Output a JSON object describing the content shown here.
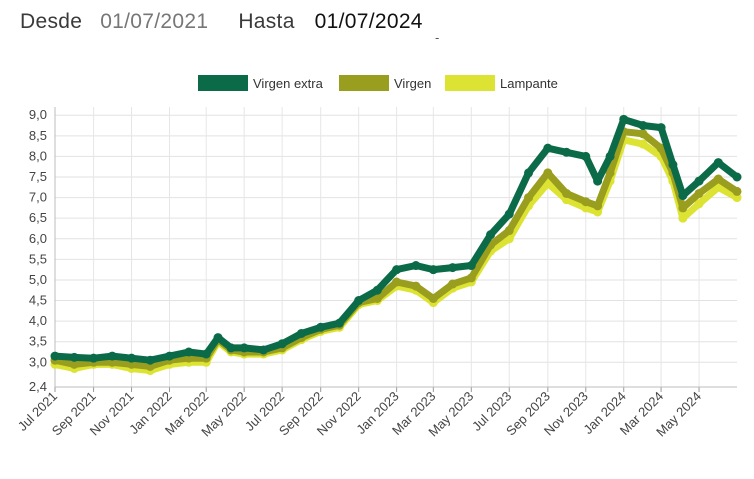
{
  "filter": {
    "from_label": "Desde",
    "from_value": "01/07/2021",
    "to_label": "Hasta",
    "to_value": "01/07/2024",
    "dash": "-"
  },
  "chart_data": {
    "type": "line",
    "title": "",
    "xlabel": "",
    "ylabel": "",
    "legend_position": "top",
    "grid": true,
    "ylim": [
      2.4,
      9.2
    ],
    "y_ticks": [
      2.4,
      3.0,
      3.5,
      4.0,
      4.5,
      5.0,
      5.5,
      6.0,
      6.5,
      7.0,
      7.5,
      8.0,
      8.5,
      9.0
    ],
    "y_tick_labels": [
      "2,4",
      "3,0",
      "3,5",
      "4,0",
      "4,5",
      "5,0",
      "5,5",
      "6,0",
      "6,5",
      "7,0",
      "7,5",
      "8,0",
      "8,5",
      "9,0"
    ],
    "x_tick_labels": [
      "Jul 2021",
      "Sep 2021",
      "Nov 2021",
      "Jan 2022",
      "Mar 2022",
      "May 2022",
      "Jul 2022",
      "Sep 2022",
      "Nov 2022",
      "Jan 2023",
      "Mar 2023",
      "May 2023",
      "Jul 2023",
      "Sep 2023",
      "Nov 2023",
      "Jan 2024",
      "Mar 2024",
      "May 2024"
    ],
    "x_tick_dates": [
      "2021-07-01",
      "2021-09-01",
      "2021-11-01",
      "2022-01-01",
      "2022-03-01",
      "2022-05-01",
      "2022-07-01",
      "2022-09-01",
      "2022-11-01",
      "2023-01-01",
      "2023-03-01",
      "2023-05-01",
      "2023-07-01",
      "2023-09-01",
      "2023-11-01",
      "2024-01-01",
      "2024-03-01",
      "2024-05-01"
    ],
    "x_range": [
      "2021-07-01",
      "2024-07-01"
    ],
    "series": [
      {
        "name": "Virgen extra",
        "color": "#0b6b49",
        "points": [
          [
            "2021-07-01",
            3.15
          ],
          [
            "2021-08-01",
            3.12
          ],
          [
            "2021-09-01",
            3.1
          ],
          [
            "2021-10-01",
            3.15
          ],
          [
            "2021-11-01",
            3.1
          ],
          [
            "2021-12-01",
            3.05
          ],
          [
            "2022-01-01",
            3.15
          ],
          [
            "2022-02-01",
            3.25
          ],
          [
            "2022-03-01",
            3.2
          ],
          [
            "2022-03-20",
            3.6
          ],
          [
            "2022-04-10",
            3.35
          ],
          [
            "2022-05-01",
            3.35
          ],
          [
            "2022-06-01",
            3.3
          ],
          [
            "2022-07-01",
            3.45
          ],
          [
            "2022-08-01",
            3.7
          ],
          [
            "2022-09-01",
            3.85
          ],
          [
            "2022-10-01",
            3.95
          ],
          [
            "2022-11-01",
            4.5
          ],
          [
            "2022-12-01",
            4.75
          ],
          [
            "2023-01-01",
            5.25
          ],
          [
            "2023-02-01",
            5.35
          ],
          [
            "2023-03-01",
            5.25
          ],
          [
            "2023-04-01",
            5.3
          ],
          [
            "2023-05-01",
            5.35
          ],
          [
            "2023-06-01",
            6.1
          ],
          [
            "2023-07-01",
            6.6
          ],
          [
            "2023-08-01",
            7.6
          ],
          [
            "2023-09-01",
            8.2
          ],
          [
            "2023-10-01",
            8.1
          ],
          [
            "2023-11-01",
            8.0
          ],
          [
            "2023-11-20",
            7.4
          ],
          [
            "2023-12-10",
            8.0
          ],
          [
            "2024-01-01",
            8.9
          ],
          [
            "2024-02-01",
            8.75
          ],
          [
            "2024-03-01",
            8.7
          ],
          [
            "2024-03-20",
            7.8
          ],
          [
            "2024-04-05",
            7.05
          ],
          [
            "2024-05-01",
            7.4
          ],
          [
            "2024-06-01",
            7.85
          ],
          [
            "2024-07-01",
            7.5
          ]
        ]
      },
      {
        "name": "Virgen",
        "color": "#9a9e1f",
        "points": [
          [
            "2021-07-01",
            3.05
          ],
          [
            "2021-08-01",
            2.95
          ],
          [
            "2021-09-01",
            3.0
          ],
          [
            "2021-10-01",
            3.0
          ],
          [
            "2021-11-01",
            2.95
          ],
          [
            "2021-12-01",
            2.9
          ],
          [
            "2022-01-01",
            3.05
          ],
          [
            "2022-02-01",
            3.1
          ],
          [
            "2022-03-01",
            3.1
          ],
          [
            "2022-03-20",
            3.55
          ],
          [
            "2022-04-10",
            3.3
          ],
          [
            "2022-05-01",
            3.25
          ],
          [
            "2022-06-01",
            3.25
          ],
          [
            "2022-07-01",
            3.35
          ],
          [
            "2022-08-01",
            3.6
          ],
          [
            "2022-09-01",
            3.8
          ],
          [
            "2022-10-01",
            3.9
          ],
          [
            "2022-11-01",
            4.45
          ],
          [
            "2022-12-01",
            4.55
          ],
          [
            "2023-01-01",
            4.95
          ],
          [
            "2023-02-01",
            4.85
          ],
          [
            "2023-03-01",
            4.55
          ],
          [
            "2023-04-01",
            4.9
          ],
          [
            "2023-05-01",
            5.05
          ],
          [
            "2023-06-01",
            5.85
          ],
          [
            "2023-07-01",
            6.2
          ],
          [
            "2023-08-01",
            7.0
          ],
          [
            "2023-09-01",
            7.6
          ],
          [
            "2023-10-01",
            7.1
          ],
          [
            "2023-11-01",
            6.9
          ],
          [
            "2023-11-20",
            6.8
          ],
          [
            "2023-12-10",
            7.6
          ],
          [
            "2024-01-01",
            8.6
          ],
          [
            "2024-02-01",
            8.55
          ],
          [
            "2024-03-01",
            8.2
          ],
          [
            "2024-03-20",
            7.6
          ],
          [
            "2024-04-05",
            6.75
          ],
          [
            "2024-05-01",
            7.1
          ],
          [
            "2024-06-01",
            7.45
          ],
          [
            "2024-07-01",
            7.15
          ]
        ]
      },
      {
        "name": "Lampante",
        "color": "#dde332",
        "points": [
          [
            "2021-07-01",
            2.95
          ],
          [
            "2021-08-01",
            2.85
          ],
          [
            "2021-09-01",
            2.95
          ],
          [
            "2021-10-01",
            2.95
          ],
          [
            "2021-11-01",
            2.85
          ],
          [
            "2021-12-01",
            2.8
          ],
          [
            "2022-01-01",
            2.95
          ],
          [
            "2022-02-01",
            3.0
          ],
          [
            "2022-03-01",
            3.0
          ],
          [
            "2022-03-20",
            3.5
          ],
          [
            "2022-04-10",
            3.25
          ],
          [
            "2022-05-01",
            3.2
          ],
          [
            "2022-06-01",
            3.2
          ],
          [
            "2022-07-01",
            3.3
          ],
          [
            "2022-08-01",
            3.55
          ],
          [
            "2022-09-01",
            3.75
          ],
          [
            "2022-10-01",
            3.85
          ],
          [
            "2022-11-01",
            4.4
          ],
          [
            "2022-12-01",
            4.5
          ],
          [
            "2023-01-01",
            4.85
          ],
          [
            "2023-02-01",
            4.75
          ],
          [
            "2023-03-01",
            4.45
          ],
          [
            "2023-04-01",
            4.8
          ],
          [
            "2023-05-01",
            4.95
          ],
          [
            "2023-06-01",
            5.7
          ],
          [
            "2023-07-01",
            6.0
          ],
          [
            "2023-08-01",
            6.8
          ],
          [
            "2023-09-01",
            7.35
          ],
          [
            "2023-10-01",
            6.95
          ],
          [
            "2023-11-01",
            6.75
          ],
          [
            "2023-11-20",
            6.65
          ],
          [
            "2023-12-10",
            7.4
          ],
          [
            "2024-01-01",
            8.4
          ],
          [
            "2024-02-01",
            8.3
          ],
          [
            "2024-03-01",
            8.0
          ],
          [
            "2024-03-20",
            7.4
          ],
          [
            "2024-04-05",
            6.5
          ],
          [
            "2024-05-01",
            6.85
          ],
          [
            "2024-06-01",
            7.25
          ],
          [
            "2024-07-01",
            7.0
          ]
        ]
      }
    ]
  }
}
